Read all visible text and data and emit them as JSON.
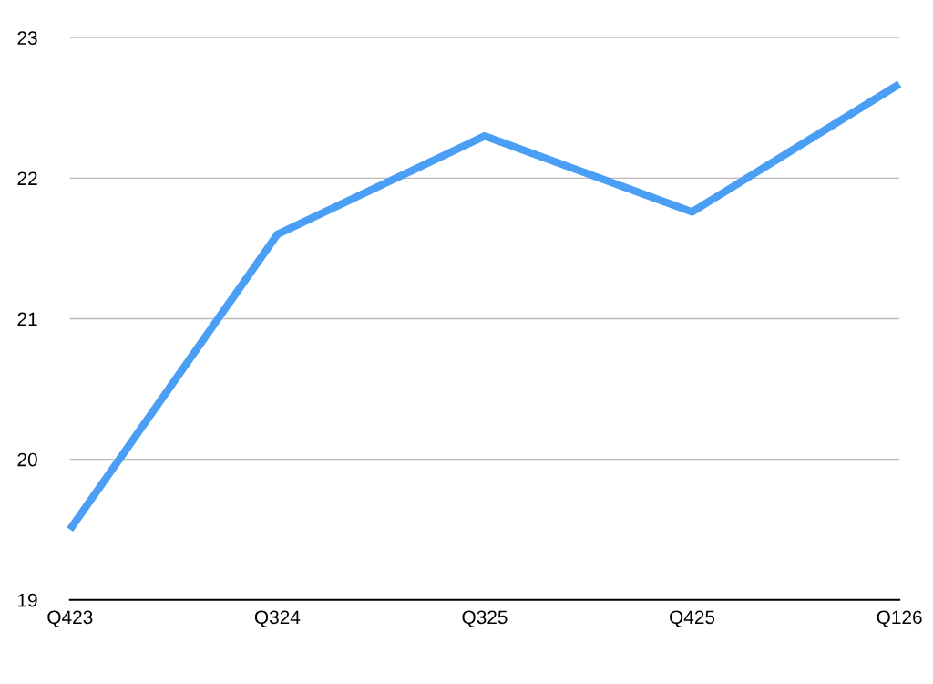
{
  "chart_data": {
    "type": "line",
    "categories": [
      "Q423",
      "Q324",
      "Q325",
      "Q425",
      "Q126"
    ],
    "series": [
      {
        "color": "#4a9ff5",
        "values": [
          19.5,
          21.6,
          22.3,
          21.76,
          22.67
        ]
      }
    ],
    "ylim": [
      19,
      23
    ],
    "yticks": [
      19,
      20,
      21,
      22,
      23
    ],
    "grid": "y",
    "marker": "none",
    "line_style": "solid"
  }
}
